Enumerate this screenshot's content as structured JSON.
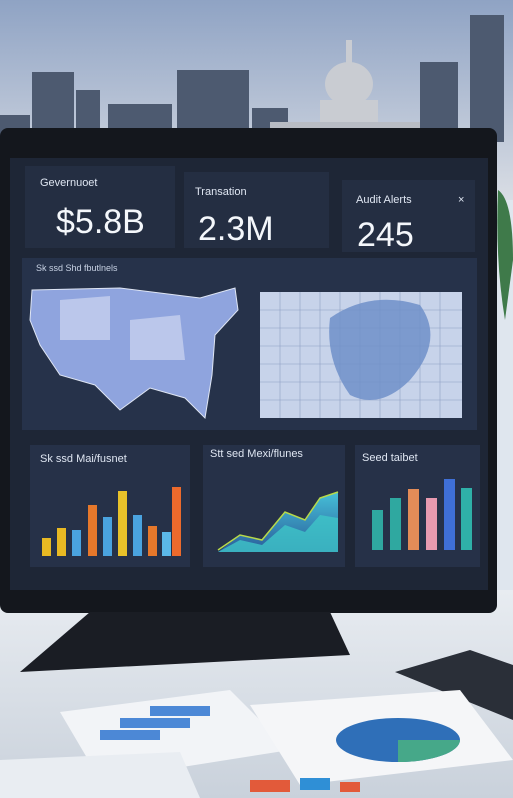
{
  "kpis": [
    {
      "label": "Gevernuoet",
      "value": "$5.8B"
    },
    {
      "label": "Transation",
      "value": "2.3M"
    },
    {
      "label": "Audit Alerts",
      "value": "245"
    }
  ],
  "map_panel": {
    "title": "Sk ssd Shd fbutlnels"
  },
  "charts": [
    {
      "title": "Sk ssd Mai/fusnet"
    },
    {
      "title": "Stt sed Mexi/flunes"
    },
    {
      "title": "Seed taibet"
    }
  ]
}
